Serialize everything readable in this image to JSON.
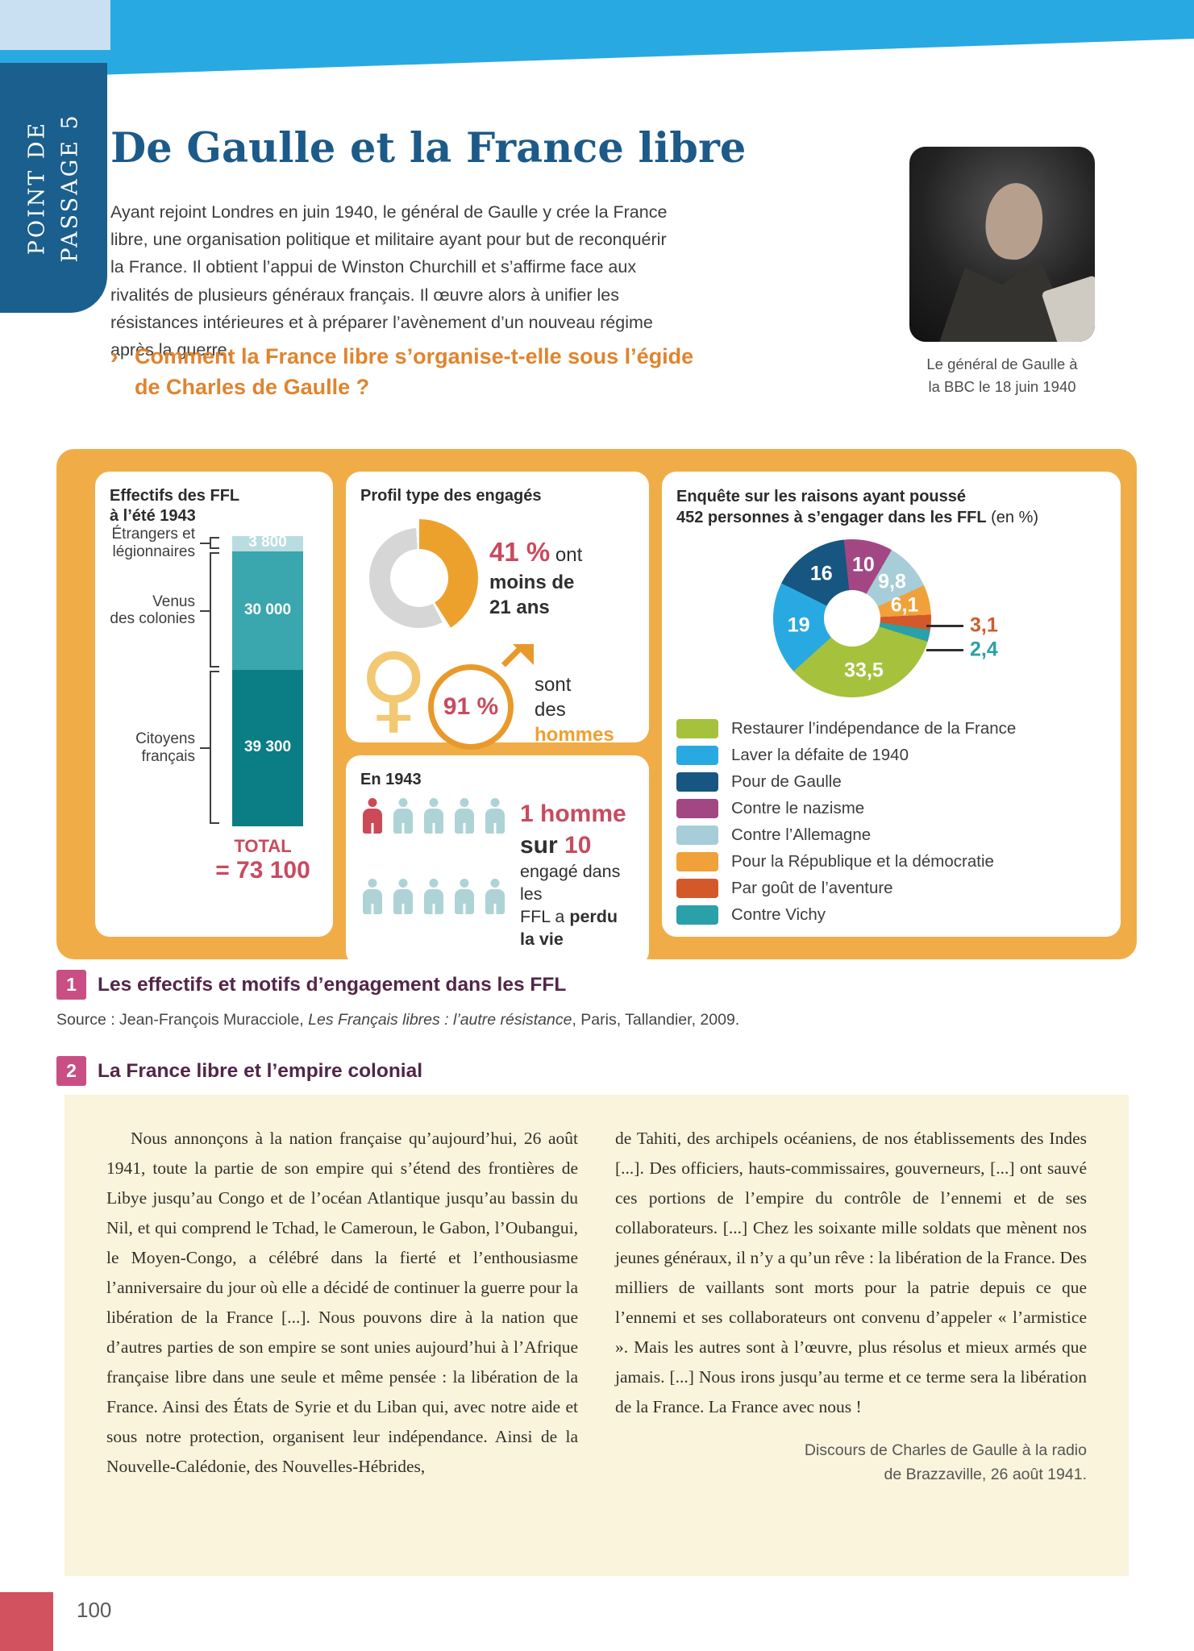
{
  "banner": {
    "text": "POINT DE\nPASSAGE 5"
  },
  "header": {
    "title": "De Gaulle et la France libre",
    "intro": "Ayant rejoint Londres en juin 1940, le général de Gaulle y crée la France libre, une organisation politique et militaire ayant pour but de reconquérir la France. Il obtient l’appui de Winston Churchill et s’affirme face aux rivalités de plusieurs généraux français. Il œuvre alors à unifier les résistances intérieures et à préparer l’avènement d’un nouveau régime après la guerre.",
    "question_marker": "›",
    "question": "Comment la France libre s’organise-t-elle sous l’égide de Charles de Gaulle ?"
  },
  "photo": {
    "caption": "Le général de Gaulle à\nla BBC le 18 juin 1940"
  },
  "chart_data": [
    {
      "type": "bar",
      "title": "Effectifs des FFL\nà l’été 1943",
      "segments": [
        {
          "label": "Étrangers et\nlégionnaires",
          "value": 3800,
          "display": "3 800",
          "color": "#b9dce0"
        },
        {
          "label": "Venus\ndes colonies",
          "value": 30000,
          "display": "30 000",
          "color": "#3aa6ad"
        },
        {
          "label": "Citoyens\nfrançais",
          "value": 39300,
          "display": "39 300",
          "color": "#0b7d84"
        }
      ],
      "total": 73100,
      "total_label": "TOTAL",
      "total_display": "= 73 100"
    },
    {
      "type": "donut",
      "title": "Profil type des engagés",
      "percent": 41,
      "arc_color": "#eda12d",
      "rest_color": "#d6d6d7",
      "pct_display": "41 %",
      "after_pct": " ont",
      "line2": "moins de",
      "line3": "21 ans",
      "male_pct": "91 %",
      "g_line1": "sont",
      "g_line2_prefix": "des ",
      "g_line2_highlight": "hommes"
    },
    {
      "type": "pictogram",
      "title": "En 1943",
      "count": 10,
      "highlight": 1,
      "big_red": "1 homme",
      "mid_dark": "sur ",
      "mid_red": "10",
      "line3": "engagé dans les",
      "line4_prefix": "FFL a ",
      "line4_bold": "perdu la vie"
    },
    {
      "type": "pie",
      "title_bold": "Enquête sur les raisons ayant poussé\n452 personnes à s’engager dans les FFL",
      "title_normal": " (en %)",
      "slices": [
        {
          "label": "Contre le nazisme",
          "value": 10,
          "display": "10",
          "color": "#a34784",
          "placement": "inside"
        },
        {
          "label": "Contre l’Allemagne",
          "value": 9.8,
          "display": "9,8",
          "color": "#a6cdd8",
          "placement": "inside"
        },
        {
          "label": "Pour la République et la démocratie",
          "value": 6.1,
          "display": "6,1",
          "color": "#f0a13a",
          "placement": "inside"
        },
        {
          "label": "Par goût de l’aventure",
          "value": 3.1,
          "display": "3,1",
          "color": "#d4592a",
          "placement": "outside"
        },
        {
          "label": "Contre Vichy",
          "value": 2.4,
          "display": "2,4",
          "color": "#2aa0a8",
          "placement": "outside"
        },
        {
          "label": "Restaurer l’indépendance de la France",
          "value": 33.5,
          "display": "33,5",
          "color": "#a6c13c",
          "placement": "inside"
        },
        {
          "label": "Laver la défaite de 1940",
          "value": 19,
          "display": "19",
          "color": "#29a9e1",
          "placement": "inside"
        },
        {
          "label": "Pour de Gaulle",
          "value": 16,
          "display": "16",
          "color": "#175680",
          "placement": "inside"
        }
      ],
      "legend": [
        {
          "label": "Restaurer l’indépendance de la France",
          "color": "#a6c13c"
        },
        {
          "label": "Laver la défaite de 1940",
          "color": "#29a9e1"
        },
        {
          "label": "Pour de Gaulle",
          "color": "#175680"
        },
        {
          "label": "Contre le nazisme",
          "color": "#a34784"
        },
        {
          "label": "Contre l’Allemagne",
          "color": "#a6cdd8"
        },
        {
          "label": "Pour la République et la démocratie",
          "color": "#f0a13a"
        },
        {
          "label": "Par goût de l’aventure",
          "color": "#d4592a"
        },
        {
          "label": "Contre Vichy",
          "color": "#2aa0a8"
        }
      ]
    }
  ],
  "caption1": {
    "num": "1",
    "text": "Les effectifs et motifs d’engagement dans les FFL"
  },
  "source": {
    "prefix": "Source : Jean-François Muracciole, ",
    "italic": "Les Français libres : l’autre résistance",
    "suffix": ", Paris, Tallandier, 2009."
  },
  "caption2": {
    "num": "2",
    "text": "La France libre et l’empire colonial"
  },
  "document": {
    "col1": "Nous annonçons à la nation française qu’aujourd’hui, 26 août 1941, toute la partie de son empire qui s’étend des frontières de Libye jusqu’au Congo et de l’océan Atlantique jusqu’au bassin du Nil, et qui comprend le Tchad, le Cameroun, le Gabon, l’Oubangui, le Moyen-Congo, a célébré dans la fierté et l’enthousiasme l’anniversaire du jour où elle a décidé de continuer la guerre pour la libération de la France [...]. Nous pouvons dire à la nation que d’autres parties de son empire se sont unies aujourd’hui à l’Afrique française libre dans une seule et même pensée : la libération de la France. Ainsi des États de Syrie et du Liban qui, avec notre aide et sous notre protection, organisent leur indépendance. Ainsi de la Nouvelle-Calédonie, des Nouvelles-Hébrides,",
    "col2": "de Tahiti, des archipels océaniens, de nos établissements des Indes [...]. Des officiers, hauts-commissaires, gouverneurs, [...] ont sauvé ces portions de l’empire du contrôle de l’ennemi et de ses collaborateurs. [...] Chez les soixante mille soldats que mènent nos jeunes généraux, il n’y a qu’un rêve : la libération de la France. Des milliers de vaillants sont morts pour la patrie depuis ce que l’ennemi et ses collaborateurs ont convenu d’appeler « l’armistice ». Mais les autres sont à l’œuvre, plus résolus et mieux armés que jamais. [...] Nous irons jusqu’au terme et ce terme sera la libération de la France. La France avec nous !",
    "attribution": "Discours de Charles de Gaulle à la radio\nde Brazzaville, 26 août 1941."
  },
  "footer": {
    "page_number": "100"
  }
}
